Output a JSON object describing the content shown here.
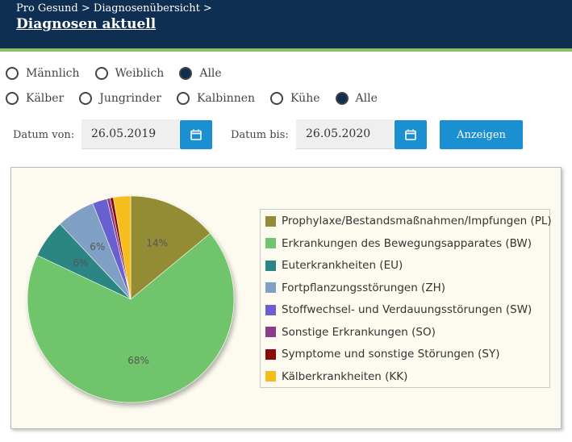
{
  "header": {
    "breadcrumb": "Pro Gesund > Diagnosenübersicht >",
    "title": "Diagnosen aktuell"
  },
  "filters": {
    "gender": [
      {
        "label": "Männlich",
        "selected": false
      },
      {
        "label": "Weiblich",
        "selected": false
      },
      {
        "label": "Alle",
        "selected": true
      }
    ],
    "group": [
      {
        "label": "Kälber",
        "selected": false
      },
      {
        "label": "Jungrinder",
        "selected": false
      },
      {
        "label": "Kalbinnen",
        "selected": false
      },
      {
        "label": "Kühe",
        "selected": false
      },
      {
        "label": "Alle",
        "selected": true
      }
    ]
  },
  "dates": {
    "from_label": "Datum von:",
    "from_value": "26.05.2019",
    "to_label": "Datum bis:",
    "to_value": "26.05.2020",
    "show_label": "Anzeigen"
  },
  "chart_data": {
    "type": "pie",
    "legend_placement": "right",
    "slices": [
      {
        "name": "Prophylaxe/Bestandsmaßnahmen/Impfungen (PL)",
        "value": 14,
        "label": "14%",
        "color": "#938c36"
      },
      {
        "name": "Erkrankungen des Bewegungsapparates (BW)",
        "value": 68,
        "label": "68%",
        "color": "#6fc46c"
      },
      {
        "name": "Euterkrankheiten (EU)",
        "value": 6,
        "label": "6%",
        "color": "#2a8583"
      },
      {
        "name": "Fortpflanzungsstörungen (ZH)",
        "value": 6,
        "label": "6%",
        "color": "#7f9fc4"
      },
      {
        "name": "Stoffwechsel- und Verdauungsstörungen (SW)",
        "value": 2.3,
        "label": "",
        "color": "#6b5fcf"
      },
      {
        "name": "Sonstige Erkrankungen (SO)",
        "value": 0.5,
        "label": "",
        "color": "#8e3a8c"
      },
      {
        "name": "Symptome und sonstige Störungen (SY)",
        "value": 0.5,
        "label": "",
        "color": "#8a0a0a"
      },
      {
        "name": "Kälberkrankheiten (KK)",
        "value": 2.7,
        "label": "",
        "color": "#f6bd1a"
      }
    ]
  }
}
